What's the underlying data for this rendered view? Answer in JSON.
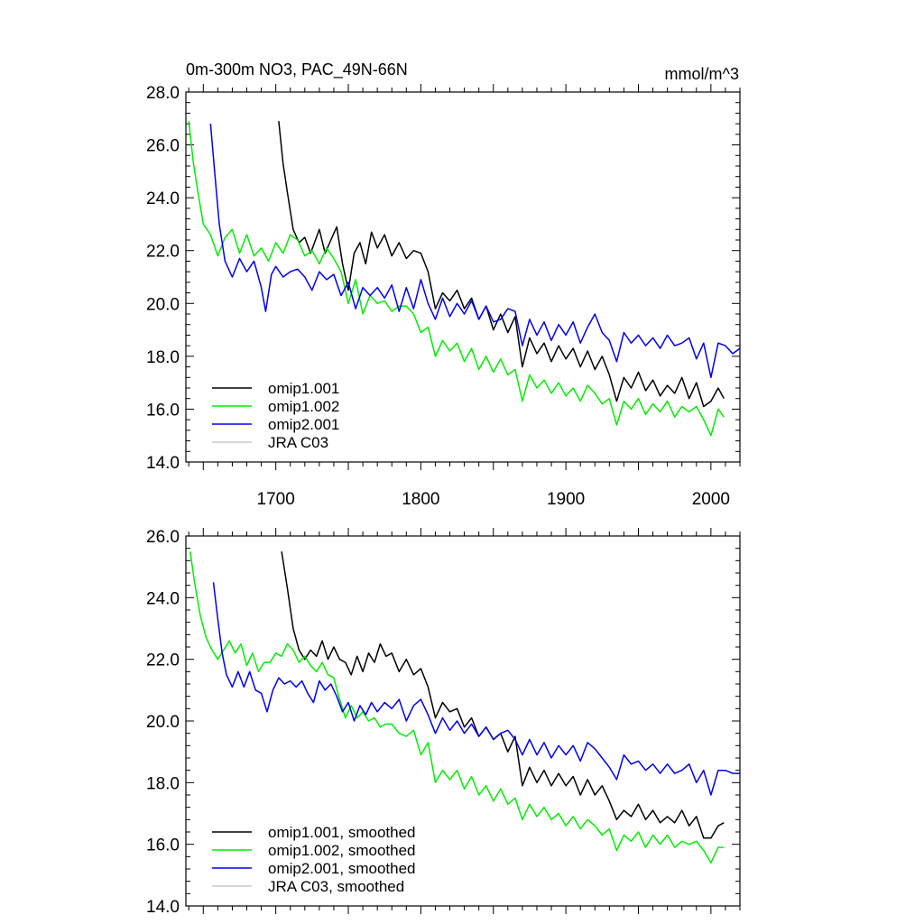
{
  "chart_data": [
    {
      "type": "line",
      "title": "0m-300m NO3, PAC_49N-66N",
      "units": "mmol/m^3",
      "xlim": [
        1638,
        2020
      ],
      "ylim": [
        14,
        28
      ],
      "yticks": [
        "14.0",
        "16.0",
        "18.0",
        "20.0",
        "22.0",
        "24.0",
        "26.0",
        "28.0"
      ],
      "xticks": [
        "1700",
        "1800",
        "1900",
        "2000"
      ],
      "legend_position": "bottom-left",
      "series": [
        {
          "name": "omip1.001",
          "color": "#000000",
          "x": [
            1702,
            1705,
            1708,
            1712,
            1716,
            1720,
            1724,
            1730,
            1734,
            1738,
            1742,
            1746,
            1750,
            1754,
            1758,
            1762,
            1766,
            1770,
            1775,
            1780,
            1785,
            1790,
            1795,
            1800,
            1805,
            1810,
            1815,
            1820,
            1825,
            1830,
            1835,
            1840,
            1845,
            1850,
            1855,
            1860,
            1865,
            1870,
            1875,
            1880,
            1885,
            1890,
            1895,
            1900,
            1905,
            1910,
            1915,
            1920,
            1925,
            1930,
            1935,
            1940,
            1945,
            1950,
            1955,
            1960,
            1965,
            1970,
            1975,
            1980,
            1985,
            1990,
            1995,
            2000,
            2005,
            2009
          ],
          "y": [
            26.9,
            25.3,
            24.2,
            22.8,
            22.3,
            22.5,
            21.9,
            22.8,
            21.9,
            22.4,
            22.9,
            21.5,
            20.5,
            21.9,
            22.3,
            21.5,
            22.7,
            22.1,
            22.6,
            21.8,
            22.3,
            21.7,
            22.0,
            21.9,
            21.2,
            19.8,
            20.4,
            20.1,
            20.5,
            19.8,
            20.2,
            19.4,
            19.9,
            19.0,
            19.6,
            18.9,
            19.5,
            17.6,
            18.7,
            18.1,
            18.5,
            17.8,
            18.4,
            17.9,
            18.3,
            17.6,
            18.2,
            17.5,
            18.0,
            17.3,
            16.3,
            17.2,
            16.8,
            17.4,
            16.7,
            17.1,
            16.5,
            16.9,
            16.6,
            17.2,
            16.4,
            17.0,
            16.1,
            16.3,
            16.8,
            16.4
          ]
        },
        {
          "name": "omip1.002",
          "color": "#00ee00",
          "x": [
            1640,
            1643,
            1646,
            1650,
            1655,
            1660,
            1665,
            1670,
            1675,
            1680,
            1685,
            1690,
            1695,
            1700,
            1705,
            1710,
            1715,
            1720,
            1725,
            1730,
            1735,
            1740,
            1745,
            1750,
            1755,
            1760,
            1765,
            1770,
            1775,
            1780,
            1785,
            1790,
            1795,
            1800,
            1805,
            1810,
            1815,
            1820,
            1825,
            1830,
            1835,
            1840,
            1845,
            1850,
            1855,
            1860,
            1865,
            1870,
            1875,
            1880,
            1885,
            1890,
            1895,
            1900,
            1905,
            1910,
            1915,
            1920,
            1925,
            1930,
            1935,
            1940,
            1945,
            1950,
            1955,
            1960,
            1965,
            1970,
            1975,
            1980,
            1985,
            1990,
            1995,
            2000,
            2005,
            2009
          ],
          "y": [
            26.9,
            25.4,
            24.3,
            23.0,
            22.6,
            21.8,
            22.5,
            22.8,
            21.9,
            22.6,
            21.8,
            22.1,
            21.6,
            22.3,
            21.9,
            22.6,
            22.4,
            21.8,
            22.0,
            21.5,
            22.1,
            21.7,
            21.2,
            20.0,
            20.9,
            19.6,
            20.3,
            20.0,
            20.1,
            19.7,
            19.9,
            19.9,
            19.6,
            18.9,
            19.1,
            18.0,
            18.6,
            18.2,
            18.5,
            17.8,
            18.3,
            17.5,
            18.0,
            17.4,
            17.9,
            17.3,
            17.5,
            16.3,
            17.3,
            16.8,
            17.1,
            16.6,
            17.0,
            16.5,
            16.8,
            16.3,
            16.9,
            16.6,
            16.2,
            16.4,
            15.4,
            16.3,
            16.0,
            16.4,
            15.8,
            16.2,
            15.9,
            16.3,
            15.7,
            16.1,
            15.9,
            16.1,
            15.6,
            15.0,
            16.0,
            15.7
          ]
        },
        {
          "name": "omip2.001",
          "color": "#0000ee",
          "x": [
            1655,
            1658,
            1661,
            1665,
            1670,
            1675,
            1680,
            1685,
            1690,
            1693,
            1697,
            1700,
            1705,
            1710,
            1715,
            1720,
            1725,
            1730,
            1735,
            1740,
            1745,
            1750,
            1755,
            1760,
            1765,
            1770,
            1775,
            1780,
            1785,
            1790,
            1795,
            1800,
            1805,
            1810,
            1815,
            1820,
            1825,
            1830,
            1835,
            1840,
            1845,
            1850,
            1855,
            1860,
            1865,
            1870,
            1875,
            1880,
            1885,
            1890,
            1895,
            1900,
            1905,
            1910,
            1915,
            1920,
            1925,
            1930,
            1935,
            1940,
            1945,
            1950,
            1955,
            1960,
            1965,
            1970,
            1975,
            1980,
            1985,
            1990,
            1995,
            2000,
            2005,
            2010,
            2015,
            2020
          ],
          "y": [
            26.8,
            24.9,
            23.0,
            21.6,
            21.0,
            21.7,
            21.2,
            21.6,
            20.6,
            19.7,
            21.1,
            21.4,
            21.0,
            21.2,
            21.3,
            21.0,
            20.5,
            21.2,
            20.9,
            21.1,
            20.3,
            20.8,
            19.8,
            20.6,
            20.3,
            20.6,
            20.2,
            20.7,
            19.7,
            20.6,
            19.8,
            20.9,
            20.0,
            19.4,
            20.2,
            19.5,
            20.0,
            19.6,
            20.1,
            19.4,
            19.9,
            19.3,
            19.4,
            19.8,
            19.7,
            18.4,
            19.4,
            18.8,
            19.3,
            18.6,
            19.2,
            18.8,
            19.3,
            18.5,
            19.1,
            19.6,
            18.9,
            18.6,
            17.8,
            18.9,
            18.5,
            18.8,
            18.4,
            18.7,
            18.3,
            18.8,
            18.4,
            18.5,
            18.7,
            17.9,
            18.5,
            17.2,
            18.5,
            18.4,
            18.1,
            18.3
          ]
        },
        {
          "name": "JRA C03",
          "color": "#c8c8c8",
          "x": [],
          "y": []
        }
      ]
    },
    {
      "type": "line",
      "title": "",
      "units": "",
      "xlim": [
        1638,
        2020
      ],
      "ylim": [
        14,
        26
      ],
      "yticks": [
        "14.0",
        "16.0",
        "18.0",
        "20.0",
        "22.0",
        "24.0",
        "26.0"
      ],
      "xticks": [],
      "legend_position": "bottom-left",
      "series": [
        {
          "name": "omip1.001, smoothed",
          "color": "#000000",
          "x": [
            1704,
            1708,
            1712,
            1716,
            1720,
            1724,
            1728,
            1732,
            1736,
            1740,
            1744,
            1748,
            1752,
            1756,
            1760,
            1764,
            1768,
            1772,
            1776,
            1780,
            1785,
            1790,
            1795,
            1800,
            1805,
            1810,
            1815,
            1820,
            1825,
            1830,
            1835,
            1840,
            1845,
            1850,
            1855,
            1860,
            1865,
            1870,
            1875,
            1880,
            1885,
            1890,
            1895,
            1900,
            1905,
            1910,
            1915,
            1920,
            1925,
            1930,
            1935,
            1940,
            1945,
            1950,
            1955,
            1960,
            1965,
            1970,
            1975,
            1980,
            1985,
            1990,
            1995,
            2000,
            2005,
            2009
          ],
          "y": [
            25.5,
            24.3,
            23.0,
            22.3,
            22.0,
            22.3,
            22.1,
            22.6,
            22.0,
            22.4,
            22.0,
            21.9,
            21.5,
            22.1,
            21.6,
            22.2,
            21.9,
            22.5,
            22.1,
            22.2,
            21.6,
            22.0,
            21.5,
            21.7,
            21.1,
            20.1,
            20.6,
            20.3,
            20.4,
            19.8,
            20.1,
            19.5,
            19.8,
            19.4,
            19.6,
            19.0,
            19.5,
            17.9,
            18.5,
            18.0,
            18.4,
            17.9,
            18.3,
            17.9,
            18.2,
            17.6,
            18.1,
            17.6,
            17.9,
            17.4,
            16.8,
            17.1,
            16.9,
            17.3,
            16.8,
            17.1,
            16.7,
            16.9,
            16.7,
            17.1,
            16.6,
            16.9,
            16.2,
            16.2,
            16.6,
            16.7
          ]
        },
        {
          "name": "omip1.002, smoothed",
          "color": "#00ee00",
          "x": [
            1641,
            1644,
            1648,
            1652,
            1656,
            1660,
            1664,
            1668,
            1672,
            1676,
            1680,
            1684,
            1688,
            1692,
            1696,
            1700,
            1704,
            1708,
            1712,
            1716,
            1720,
            1724,
            1728,
            1732,
            1736,
            1740,
            1744,
            1748,
            1752,
            1756,
            1760,
            1764,
            1768,
            1772,
            1776,
            1780,
            1785,
            1790,
            1795,
            1800,
            1805,
            1810,
            1815,
            1820,
            1825,
            1830,
            1835,
            1840,
            1845,
            1850,
            1855,
            1860,
            1865,
            1870,
            1875,
            1880,
            1885,
            1890,
            1895,
            1900,
            1905,
            1910,
            1915,
            1920,
            1925,
            1930,
            1935,
            1940,
            1945,
            1950,
            1955,
            1960,
            1965,
            1970,
            1975,
            1980,
            1985,
            1990,
            1995,
            2000,
            2005,
            2009
          ],
          "y": [
            25.5,
            24.5,
            23.4,
            22.7,
            22.3,
            22.0,
            22.3,
            22.6,
            22.2,
            22.5,
            21.8,
            22.2,
            21.6,
            21.9,
            21.9,
            22.2,
            22.1,
            22.5,
            22.3,
            21.9,
            22.1,
            21.8,
            21.6,
            21.9,
            21.5,
            21.4,
            20.7,
            20.1,
            20.5,
            20.1,
            20.3,
            20.0,
            20.1,
            19.8,
            19.9,
            19.9,
            19.6,
            19.5,
            19.7,
            18.9,
            19.3,
            18.0,
            18.4,
            18.1,
            18.4,
            17.8,
            18.2,
            17.6,
            17.9,
            17.4,
            17.8,
            17.3,
            17.5,
            16.8,
            17.3,
            16.9,
            17.2,
            16.8,
            17.0,
            16.6,
            16.9,
            16.5,
            16.8,
            16.6,
            16.3,
            16.5,
            15.8,
            16.3,
            16.1,
            16.4,
            15.9,
            16.3,
            16.0,
            16.3,
            15.9,
            16.1,
            16.0,
            16.1,
            15.8,
            15.4,
            15.9,
            15.9
          ]
        },
        {
          "name": "omip2.001, smoothed",
          "color": "#0000ee",
          "x": [
            1657,
            1660,
            1663,
            1666,
            1670,
            1674,
            1678,
            1682,
            1686,
            1690,
            1694,
            1698,
            1702,
            1706,
            1710,
            1714,
            1718,
            1722,
            1726,
            1730,
            1734,
            1738,
            1742,
            1746,
            1750,
            1754,
            1758,
            1762,
            1766,
            1770,
            1775,
            1780,
            1785,
            1790,
            1795,
            1800,
            1805,
            1810,
            1815,
            1820,
            1825,
            1830,
            1835,
            1840,
            1845,
            1850,
            1855,
            1860,
            1865,
            1870,
            1875,
            1880,
            1885,
            1890,
            1895,
            1900,
            1905,
            1910,
            1915,
            1920,
            1925,
            1930,
            1935,
            1940,
            1945,
            1950,
            1955,
            1960,
            1965,
            1970,
            1975,
            1980,
            1985,
            1990,
            1995,
            2000,
            2005,
            2010,
            2015,
            2020
          ],
          "y": [
            24.5,
            23.3,
            22.2,
            21.5,
            21.1,
            21.6,
            21.1,
            21.6,
            21.0,
            20.9,
            20.3,
            21.0,
            21.4,
            21.2,
            21.3,
            21.1,
            21.3,
            20.9,
            20.6,
            21.3,
            21.0,
            21.2,
            20.8,
            20.3,
            20.6,
            20.0,
            20.5,
            20.2,
            20.6,
            20.3,
            20.6,
            20.4,
            20.7,
            20.0,
            20.5,
            20.7,
            20.2,
            19.6,
            20.1,
            19.7,
            20.0,
            19.6,
            19.9,
            19.5,
            19.8,
            19.4,
            19.6,
            19.7,
            19.4,
            18.9,
            19.4,
            18.9,
            19.3,
            18.8,
            19.2,
            18.9,
            19.2,
            18.7,
            19.3,
            19.1,
            18.8,
            18.5,
            18.1,
            18.9,
            18.6,
            18.7,
            18.4,
            18.6,
            18.3,
            18.6,
            18.3,
            18.4,
            18.6,
            18.0,
            18.4,
            17.6,
            18.4,
            18.4,
            18.3,
            18.3
          ]
        },
        {
          "name": "JRA C03, smoothed",
          "color": "#c8c8c8",
          "x": [],
          "y": []
        }
      ]
    }
  ]
}
